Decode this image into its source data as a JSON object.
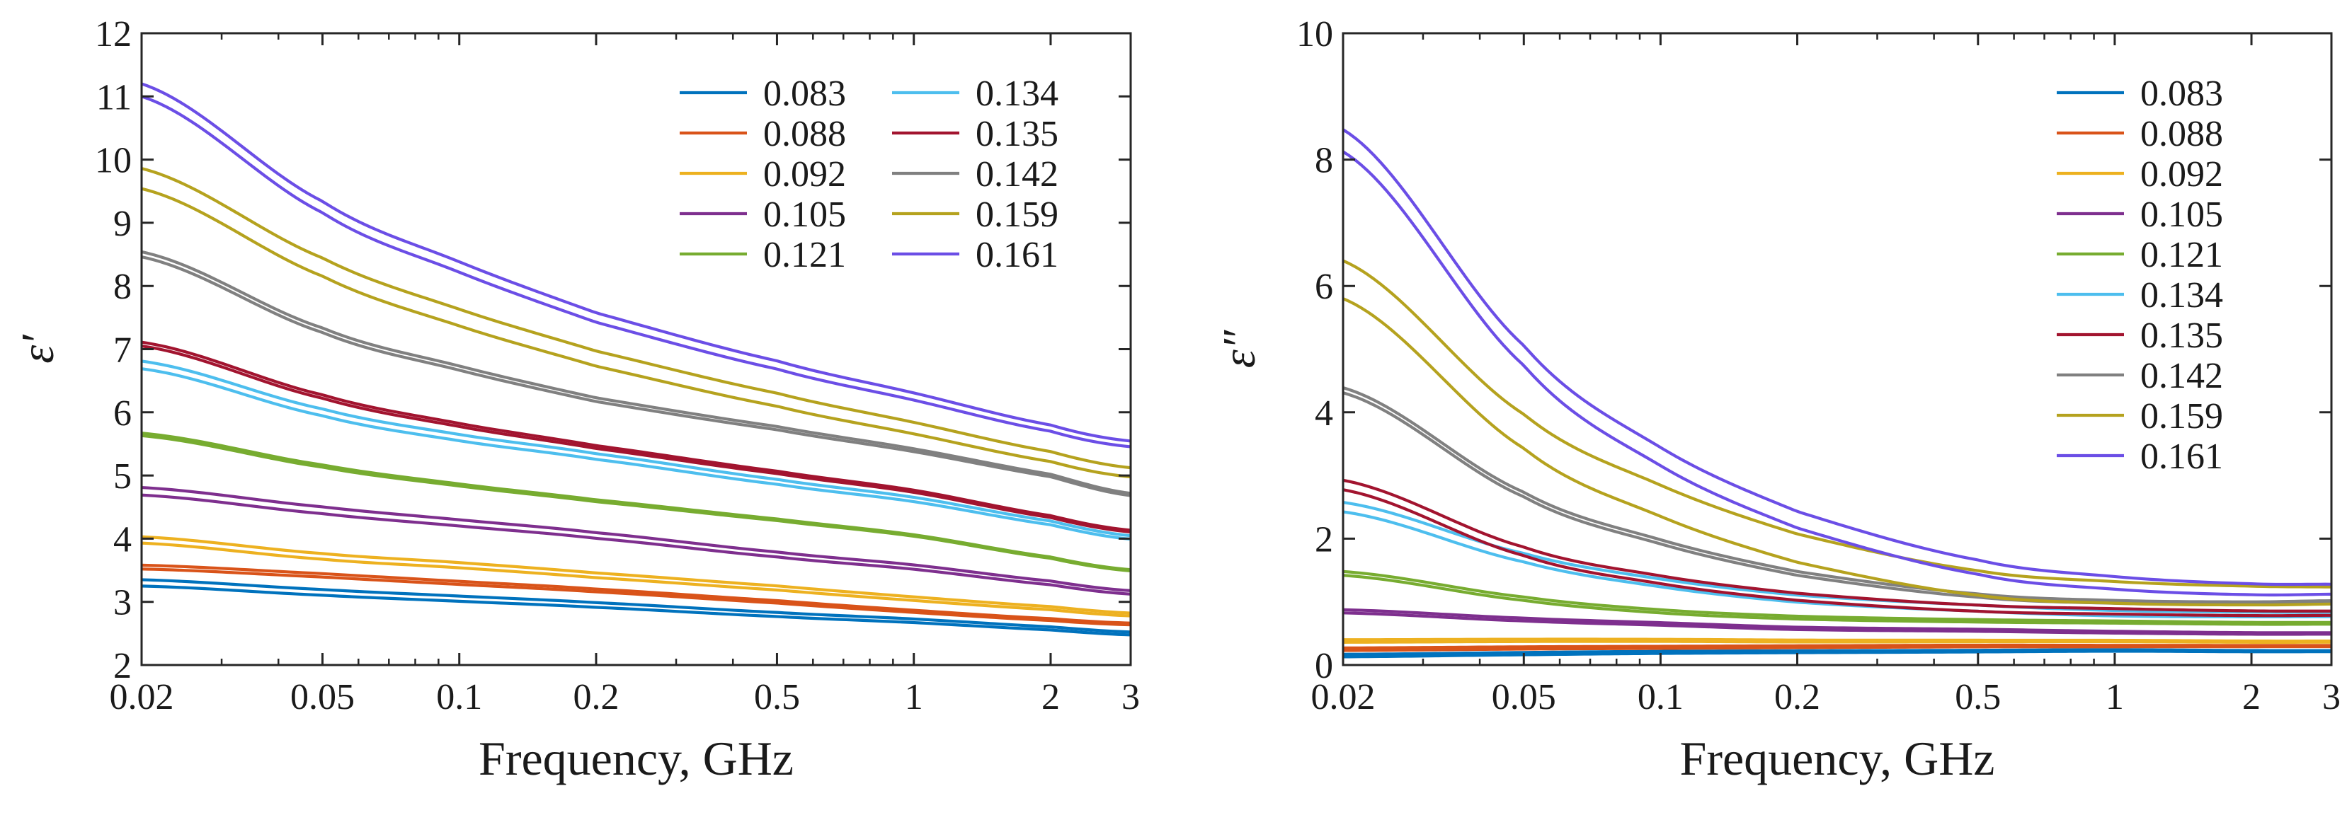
{
  "chart_data": [
    {
      "type": "line",
      "id": "eps_real",
      "xscale": "log",
      "xlabel": "Frequency, GHz",
      "ylabel": "ε′",
      "xlim": [
        0.02,
        3
      ],
      "ylim": [
        2,
        12
      ],
      "xticks": [
        0.02,
        0.05,
        0.1,
        0.2,
        0.5,
        1,
        2,
        3
      ],
      "xtick_labels": [
        "0.02",
        "0.05",
        "0.1",
        "0.2",
        "0.5",
        "1",
        "2",
        "3"
      ],
      "yticks": [
        2,
        3,
        4,
        5,
        6,
        7,
        8,
        9,
        10,
        11,
        12
      ],
      "ytick_labels": [
        "2",
        "3",
        "4",
        "5",
        "6",
        "7",
        "8",
        "9",
        "10",
        "11",
        "12"
      ],
      "legend": {
        "placement": "top-right",
        "columns": 2
      },
      "x": [
        0.02,
        0.05,
        0.1,
        0.2,
        0.5,
        1,
        2,
        3
      ],
      "series": [
        {
          "name": "0.083",
          "color": "#0072BD",
          "values": [
            3.3,
            3.15,
            3.05,
            2.95,
            2.8,
            2.7,
            2.58,
            2.5
          ],
          "offset": 0.1
        },
        {
          "name": "0.088",
          "color": "#D95319",
          "values": [
            3.55,
            3.42,
            3.3,
            3.18,
            3.0,
            2.85,
            2.72,
            2.65
          ],
          "offset": 0.06
        },
        {
          "name": "0.092",
          "color": "#EDB120",
          "values": [
            3.98,
            3.72,
            3.58,
            3.42,
            3.22,
            3.05,
            2.9,
            2.8
          ],
          "offset": 0.1
        },
        {
          "name": "0.105",
          "color": "#7E2F8E",
          "values": [
            4.75,
            4.45,
            4.25,
            4.05,
            3.75,
            3.55,
            3.3,
            3.15
          ],
          "offset": 0.12
        },
        {
          "name": "0.121",
          "color": "#77AC30",
          "values": [
            5.65,
            5.15,
            4.85,
            4.6,
            4.3,
            4.05,
            3.7,
            3.5
          ],
          "offset": 0.04
        },
        {
          "name": "0.134",
          "color": "#4DBEEE",
          "values": [
            6.75,
            6.0,
            5.6,
            5.3,
            4.9,
            4.62,
            4.25,
            4.02
          ],
          "offset": 0.12
        },
        {
          "name": "0.135",
          "color": "#A2142F",
          "values": [
            7.08,
            6.25,
            5.8,
            5.45,
            5.05,
            4.75,
            4.35,
            4.12
          ],
          "offset": 0.06
        },
        {
          "name": "0.142",
          "color": "#808080",
          "values": [
            8.5,
            7.3,
            6.7,
            6.2,
            5.75,
            5.4,
            5.0,
            4.7
          ],
          "offset": 0.08
        },
        {
          "name": "0.159",
          "color": "#B5A21E",
          "values": [
            9.7,
            8.3,
            7.5,
            6.85,
            6.2,
            5.75,
            5.3,
            5.05
          ],
          "offset": 0.32
        },
        {
          "name": "0.161",
          "color": "#6B4EE6",
          "values": [
            11.1,
            9.25,
            8.3,
            7.5,
            6.75,
            6.25,
            5.75,
            5.5
          ],
          "offset": 0.2
        }
      ]
    },
    {
      "type": "line",
      "id": "eps_imag",
      "xscale": "log",
      "xlabel": "Frequency, GHz",
      "ylabel": "ε″",
      "xlim": [
        0.02,
        3
      ],
      "ylim": [
        0,
        10
      ],
      "xticks": [
        0.02,
        0.05,
        0.1,
        0.2,
        0.5,
        1,
        2,
        3
      ],
      "xtick_labels": [
        "0.02",
        "0.05",
        "0.1",
        "0.2",
        "0.5",
        "1",
        "2",
        "3"
      ],
      "yticks": [
        0,
        2,
        4,
        6,
        8,
        10
      ],
      "ytick_labels": [
        "0",
        "2",
        "4",
        "6",
        "8",
        "10"
      ],
      "legend": {
        "placement": "top-right",
        "columns": 1
      },
      "x": [
        0.02,
        0.05,
        0.1,
        0.2,
        0.5,
        1,
        2,
        3
      ],
      "series": [
        {
          "name": "0.083",
          "color": "#0072BD",
          "values": [
            0.15,
            0.18,
            0.2,
            0.21,
            0.22,
            0.23,
            0.22,
            0.22
          ],
          "offset": 0.04
        },
        {
          "name": "0.088",
          "color": "#D95319",
          "values": [
            0.25,
            0.27,
            0.28,
            0.29,
            0.3,
            0.3,
            0.3,
            0.3
          ],
          "offset": 0.04
        },
        {
          "name": "0.092",
          "color": "#EDB120",
          "values": [
            0.38,
            0.39,
            0.39,
            0.38,
            0.38,
            0.38,
            0.37,
            0.37
          ],
          "offset": 0.04
        },
        {
          "name": "0.105",
          "color": "#7E2F8E",
          "values": [
            0.85,
            0.72,
            0.65,
            0.58,
            0.55,
            0.52,
            0.5,
            0.5
          ],
          "offset": 0.05
        },
        {
          "name": "0.121",
          "color": "#77AC30",
          "values": [
            1.45,
            1.05,
            0.85,
            0.75,
            0.7,
            0.68,
            0.66,
            0.66
          ],
          "offset": 0.06
        },
        {
          "name": "0.134",
          "color": "#4DBEEE",
          "values": [
            2.5,
            1.7,
            1.3,
            1.05,
            0.9,
            0.82,
            0.8,
            0.8
          ],
          "offset": 0.15
        },
        {
          "name": "0.135",
          "color": "#A2142F",
          "values": [
            2.85,
            1.8,
            1.35,
            1.08,
            0.9,
            0.85,
            0.82,
            0.82
          ],
          "offset": 0.15
        },
        {
          "name": "0.142",
          "color": "#808080",
          "values": [
            4.35,
            2.7,
            1.95,
            1.45,
            1.1,
            1.0,
            0.98,
            1.0
          ],
          "offset": 0.08
        },
        {
          "name": "0.159",
          "color": "#B5A21E",
          "values": [
            6.1,
            3.7,
            2.6,
            1.85,
            1.3,
            1.15,
            1.1,
            1.1
          ],
          "offset": 0.6
        },
        {
          "name": "0.161",
          "color": "#6B4EE6",
          "values": [
            8.3,
            4.9,
            3.3,
            2.3,
            1.55,
            1.3,
            1.2,
            1.2
          ],
          "offset": 0.35
        }
      ]
    }
  ]
}
